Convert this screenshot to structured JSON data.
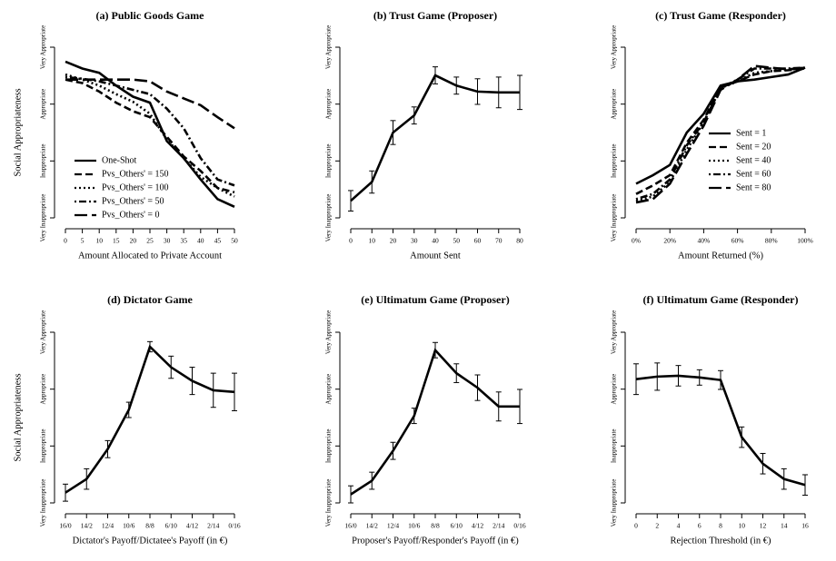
{
  "chart_data": [
    {
      "type": "line",
      "title": "(a) Public Goods Game",
      "x_label": "Amount Allocated to Private Account",
      "y_label": "Social Appropriateness",
      "x": [
        0,
        5,
        10,
        15,
        20,
        25,
        30,
        35,
        40,
        45,
        50
      ],
      "xlim": [
        0,
        50
      ],
      "xticks": [
        0,
        5,
        10,
        15,
        20,
        25,
        30,
        35,
        40,
        45,
        50
      ],
      "ylim": [
        -1,
        1
      ],
      "yticks": [
        {
          "value": -1,
          "label": "Very Inappropriate"
        },
        {
          "value": -0.333,
          "label": "Inappropriate"
        },
        {
          "value": 0.333,
          "label": "Appropriate"
        },
        {
          "value": 1,
          "label": "Very Appropriate"
        }
      ],
      "legend": "lower left",
      "series": [
        {
          "name": "One-Shot",
          "color": "#000000",
          "dash": "none",
          "values": [
            0.83,
            0.75,
            0.7,
            0.55,
            0.42,
            0.35,
            -0.1,
            -0.3,
            -0.55,
            -0.78,
            -0.87
          ]
        },
        {
          "name": "Pvs_Others' = 150",
          "color": "#000000",
          "dash": "8,4",
          "values": [
            0.62,
            0.58,
            0.48,
            0.35,
            0.25,
            0.18,
            -0.05,
            -0.28,
            -0.45,
            -0.65,
            -0.7
          ]
        },
        {
          "name": "Pvs_Others' = 100",
          "color": "#000000",
          "dash": "2,3",
          "values": [
            0.68,
            0.62,
            0.55,
            0.45,
            0.36,
            0.22,
            -0.08,
            -0.3,
            -0.52,
            -0.65,
            -0.75
          ]
        },
        {
          "name": "Pvs_Others' = 50",
          "color": "#000000",
          "dash": "2,3,8,3",
          "values": [
            0.65,
            0.63,
            0.6,
            0.55,
            0.5,
            0.45,
            0.28,
            0.05,
            -0.3,
            -0.55,
            -0.62
          ]
        },
        {
          "name": "Pvs_Others' = 0",
          "color": "#000000",
          "dash": "14,5",
          "values": [
            0.62,
            0.62,
            0.62,
            0.62,
            0.62,
            0.6,
            0.48,
            0.4,
            0.32,
            0.18,
            0.05
          ]
        }
      ]
    },
    {
      "type": "errorline",
      "title": "(b) Trust Game (Proposer)",
      "x_label": "Amount Sent",
      "x": [
        0,
        10,
        20,
        30,
        40,
        50,
        60,
        70,
        80
      ],
      "xlim": [
        0,
        80
      ],
      "xticks": [
        0,
        10,
        20,
        30,
        40,
        50,
        60,
        70,
        80
      ],
      "ylim": [
        -1,
        1
      ],
      "yticks": [
        {
          "value": -1,
          "label": "Very Inappropriate"
        },
        {
          "value": -0.333,
          "label": "Inappropriate"
        },
        {
          "value": 0.333,
          "label": "Appropriate"
        },
        {
          "value": 1,
          "label": "Very Appropriate"
        }
      ],
      "color": "#000000",
      "values": [
        -0.8,
        -0.58,
        0.0,
        0.2,
        0.67,
        0.55,
        0.48,
        0.47,
        0.47
      ],
      "errors": [
        0.12,
        0.13,
        0.14,
        0.1,
        0.1,
        0.1,
        0.15,
        0.18,
        0.2
      ]
    },
    {
      "type": "line",
      "title": "(c) Trust Game (Responder)",
      "x_label": "Amount Returned (%)",
      "x": [
        0,
        10,
        20,
        30,
        40,
        50,
        60,
        70,
        80,
        90,
        100
      ],
      "xlim": [
        0,
        100
      ],
      "xticks": [
        {
          "value": 0,
          "label": "0%"
        },
        {
          "value": 20,
          "label": "20%"
        },
        {
          "value": 40,
          "label": "40%"
        },
        {
          "value": 60,
          "label": "60%"
        },
        {
          "value": 80,
          "label": "80%"
        },
        {
          "value": 100,
          "label": "100%"
        }
      ],
      "ylim": [
        -1,
        1
      ],
      "yticks": [
        {
          "value": -1,
          "label": "Very Inappropriate"
        },
        {
          "value": -0.333,
          "label": "Inappropriate"
        },
        {
          "value": 0.333,
          "label": "Appropriate"
        },
        {
          "value": 1,
          "label": "Very Appropriate"
        }
      ],
      "legend": "right",
      "series": [
        {
          "name": "Sent = 1",
          "color": "#000000",
          "dash": "none",
          "values": [
            -0.6,
            -0.5,
            -0.38,
            0.0,
            0.22,
            0.55,
            0.6,
            0.62,
            0.65,
            0.68,
            0.76
          ]
        },
        {
          "name": "Sent = 20",
          "color": "#000000",
          "dash": "8,4",
          "values": [
            -0.72,
            -0.62,
            -0.5,
            -0.12,
            0.15,
            0.53,
            0.6,
            0.68,
            0.72,
            0.73,
            0.75
          ]
        },
        {
          "name": "Sent = 40",
          "color": "#000000",
          "dash": "2,3",
          "values": [
            -0.8,
            -0.75,
            -0.58,
            -0.2,
            0.12,
            0.52,
            0.6,
            0.7,
            0.72,
            0.74,
            0.75
          ]
        },
        {
          "name": "Sent = 60",
          "color": "#000000",
          "dash": "2,3,8,3",
          "values": [
            -0.78,
            -0.72,
            -0.55,
            -0.15,
            0.12,
            0.52,
            0.62,
            0.75,
            0.75,
            0.75,
            0.76
          ]
        },
        {
          "name": "Sent = 80",
          "color": "#000000",
          "dash": "14,5",
          "values": [
            -0.82,
            -0.78,
            -0.6,
            -0.25,
            0.08,
            0.5,
            0.62,
            0.78,
            0.76,
            0.74,
            0.76
          ]
        }
      ]
    },
    {
      "type": "errorline",
      "title": "(d) Dictator Game",
      "x_label": "Dictator's Payoff/Dictatee's Payoff (in €)",
      "y_label": "Social Appropriateness",
      "categories": [
        "16/0",
        "14/2",
        "12/4",
        "10/6",
        "8/8",
        "6/10",
        "4/12",
        "2/14",
        "0/16"
      ],
      "ylim": [
        -1,
        1
      ],
      "yticks": [
        {
          "value": -1,
          "label": "Very Inappropriate"
        },
        {
          "value": -0.333,
          "label": "Inappropriate"
        },
        {
          "value": 0.333,
          "label": "Appropriate"
        },
        {
          "value": 1,
          "label": "Very Appropriate"
        }
      ],
      "color": "#000000",
      "values": [
        -0.88,
        -0.72,
        -0.37,
        0.09,
        0.83,
        0.59,
        0.43,
        0.32,
        0.3
      ],
      "errors": [
        0.1,
        0.12,
        0.1,
        0.09,
        0.06,
        0.13,
        0.16,
        0.2,
        0.22
      ]
    },
    {
      "type": "errorline",
      "title": "(e) Ultimatum Game (Proposer)",
      "x_label": "Proposer's Payoff/Responder's Payoff (in €)",
      "categories": [
        "16/0",
        "14/2",
        "12/4",
        "10/6",
        "8/8",
        "6/10",
        "4/12",
        "2/14",
        "0/16"
      ],
      "ylim": [
        -1,
        1
      ],
      "yticks": [
        {
          "value": -1,
          "label": "Very Inappropriate"
        },
        {
          "value": -0.333,
          "label": "Inappropriate"
        },
        {
          "value": 0.333,
          "label": "Appropriate"
        },
        {
          "value": 1,
          "label": "Very Appropriate"
        }
      ],
      "color": "#000000",
      "values": [
        -0.9,
        -0.74,
        -0.39,
        0.02,
        0.79,
        0.52,
        0.35,
        0.13,
        0.13
      ],
      "errors": [
        0.1,
        0.1,
        0.1,
        0.09,
        0.09,
        0.11,
        0.15,
        0.17,
        0.2
      ]
    },
    {
      "type": "errorline",
      "title": "(f) Ultimatum Game (Responder)",
      "x_label": "Rejection Threshold (in €)",
      "x": [
        0,
        2,
        4,
        6,
        8,
        10,
        12,
        14,
        16
      ],
      "xlim": [
        0,
        16
      ],
      "xticks": [
        0,
        2,
        4,
        6,
        8,
        10,
        12,
        14,
        16
      ],
      "ylim": [
        -1,
        1
      ],
      "yticks": [
        {
          "value": -1,
          "label": "Very Inappropriate"
        },
        {
          "value": -0.333,
          "label": "Inappropriate"
        },
        {
          "value": 0.333,
          "label": "Appropriate"
        },
        {
          "value": 1,
          "label": "Very Appropriate"
        }
      ],
      "color": "#000000",
      "values": [
        0.45,
        0.48,
        0.49,
        0.47,
        0.44,
        -0.23,
        -0.54,
        -0.72,
        -0.79
      ],
      "errors": [
        0.18,
        0.16,
        0.12,
        0.09,
        0.11,
        0.12,
        0.12,
        0.12,
        0.12
      ]
    }
  ]
}
